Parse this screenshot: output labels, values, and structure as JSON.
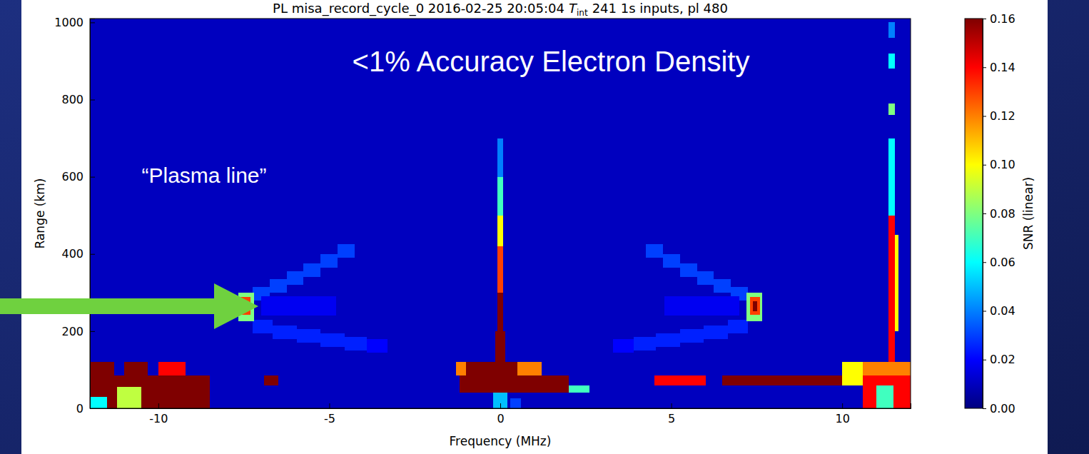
{
  "chart_data": {
    "type": "heatmap",
    "title": [
      "PL misa_record_cycle_0 2016-02-25 20:05:04",
      "T",
      "int",
      "241 1s inputs, pl 480"
    ],
    "x_label": "Frequency (MHz)",
    "y_label": "Range (km)",
    "xlim": [
      -12,
      12
    ],
    "ylim": [
      0,
      1010
    ],
    "xticks": [
      -10,
      -5,
      0,
      5,
      10
    ],
    "yticks": [
      0,
      200,
      400,
      600,
      800,
      1000
    ],
    "cells": [
      {
        "x": [
          -12,
          12
        ],
        "y": [
          0,
          1010
        ],
        "value": 0.01
      },
      {
        "x": [
          -0.08,
          0.08
        ],
        "y": [
          120,
          300
        ],
        "value": 0.16
      },
      {
        "x": [
          -0.08,
          0.08
        ],
        "y": [
          300,
          420
        ],
        "value": 0.13
      },
      {
        "x": [
          -0.08,
          0.08
        ],
        "y": [
          420,
          500
        ],
        "value": 0.1
      },
      {
        "x": [
          -0.08,
          0.08
        ],
        "y": [
          500,
          600
        ],
        "value": 0.07
      },
      {
        "x": [
          -0.08,
          0.08
        ],
        "y": [
          600,
          700
        ],
        "value": 0.04
      },
      {
        "x": [
          -0.15,
          0.15
        ],
        "y": [
          120,
          200
        ],
        "value": 0.16
      },
      {
        "x": [
          -7.25,
          -6.75
        ],
        "y": [
          280,
          315
        ],
        "value": 0.03
      },
      {
        "x": [
          -6.75,
          -6.25
        ],
        "y": [
          300,
          335
        ],
        "value": 0.03
      },
      {
        "x": [
          -6.25,
          -5.75
        ],
        "y": [
          320,
          355
        ],
        "value": 0.03
      },
      {
        "x": [
          -5.75,
          -5.25
        ],
        "y": [
          340,
          375
        ],
        "value": 0.03
      },
      {
        "x": [
          -5.25,
          -4.75
        ],
        "y": [
          365,
          400
        ],
        "value": 0.03
      },
      {
        "x": [
          -4.75,
          -4.25
        ],
        "y": [
          390,
          425
        ],
        "value": 0.03
      },
      {
        "x": [
          -7.25,
          -6.65
        ],
        "y": [
          195,
          230
        ],
        "value": 0.025
      },
      {
        "x": [
          -6.65,
          -5.95
        ],
        "y": [
          180,
          215
        ],
        "value": 0.025
      },
      {
        "x": [
          -5.95,
          -5.25
        ],
        "y": [
          170,
          205
        ],
        "value": 0.025
      },
      {
        "x": [
          -5.25,
          -4.55
        ],
        "y": [
          160,
          195
        ],
        "value": 0.025
      },
      {
        "x": [
          -4.55,
          -3.9
        ],
        "y": [
          150,
          185
        ],
        "value": 0.025
      },
      {
        "x": [
          -3.9,
          -3.3
        ],
        "y": [
          145,
          180
        ],
        "value": 0.02
      },
      {
        "x": [
          -7.0,
          -4.8
        ],
        "y": [
          240,
          290
        ],
        "value": 0.018
      },
      {
        "x": [
          -7.65,
          -7.2
        ],
        "y": [
          225,
          300
        ],
        "value": 0.08
      },
      {
        "x": [
          -7.6,
          -7.3
        ],
        "y": [
          242,
          288
        ],
        "value": 0.13
      },
      {
        "x": [
          -7.52,
          -7.38
        ],
        "y": [
          252,
          278
        ],
        "value": 0.16
      },
      {
        "x": [
          6.75,
          7.25
        ],
        "y": [
          280,
          315
        ],
        "value": 0.03
      },
      {
        "x": [
          6.25,
          6.75
        ],
        "y": [
          300,
          335
        ],
        "value": 0.03
      },
      {
        "x": [
          5.75,
          6.25
        ],
        "y": [
          320,
          355
        ],
        "value": 0.03
      },
      {
        "x": [
          5.25,
          5.75
        ],
        "y": [
          340,
          375
        ],
        "value": 0.03
      },
      {
        "x": [
          4.75,
          5.25
        ],
        "y": [
          365,
          400
        ],
        "value": 0.03
      },
      {
        "x": [
          4.25,
          4.75
        ],
        "y": [
          390,
          425
        ],
        "value": 0.03
      },
      {
        "x": [
          6.65,
          7.25
        ],
        "y": [
          195,
          230
        ],
        "value": 0.025
      },
      {
        "x": [
          5.95,
          6.65
        ],
        "y": [
          180,
          215
        ],
        "value": 0.025
      },
      {
        "x": [
          5.25,
          5.95
        ],
        "y": [
          170,
          205
        ],
        "value": 0.025
      },
      {
        "x": [
          4.55,
          5.25
        ],
        "y": [
          160,
          195
        ],
        "value": 0.025
      },
      {
        "x": [
          3.9,
          4.55
        ],
        "y": [
          150,
          185
        ],
        "value": 0.025
      },
      {
        "x": [
          3.3,
          3.9
        ],
        "y": [
          145,
          180
        ],
        "value": 0.02
      },
      {
        "x": [
          4.8,
          7.0
        ],
        "y": [
          240,
          290
        ],
        "value": 0.018
      },
      {
        "x": [
          7.2,
          7.65
        ],
        "y": [
          225,
          300
        ],
        "value": 0.08
      },
      {
        "x": [
          7.3,
          7.6
        ],
        "y": [
          242,
          288
        ],
        "value": 0.13
      },
      {
        "x": [
          7.38,
          7.52
        ],
        "y": [
          252,
          278
        ],
        "value": 0.16
      },
      {
        "x": [
          -12,
          -11.3
        ],
        "y": [
          85,
          120
        ],
        "value": 0.16
      },
      {
        "x": [
          -11.0,
          -10.3
        ],
        "y": [
          85,
          120
        ],
        "value": 0.16
      },
      {
        "x": [
          -10.0,
          -9.2
        ],
        "y": [
          85,
          120
        ],
        "value": 0.14
      },
      {
        "x": [
          -12,
          -8.5
        ],
        "y": [
          0,
          85
        ],
        "value": 0.16
      },
      {
        "x": [
          -11.2,
          -10.5
        ],
        "y": [
          0,
          55
        ],
        "value": 0.09
      },
      {
        "x": [
          -12,
          -11.5
        ],
        "y": [
          0,
          30
        ],
        "value": 0.06
      },
      {
        "x": [
          -6.9,
          -6.5
        ],
        "y": [
          60,
          85
        ],
        "value": 0.16
      },
      {
        "x": [
          -1.3,
          1.2
        ],
        "y": [
          85,
          120
        ],
        "value": 0.12
      },
      {
        "x": [
          -1.0,
          0.5
        ],
        "y": [
          85,
          120
        ],
        "value": 0.16
      },
      {
        "x": [
          -1.2,
          2.0
        ],
        "y": [
          40,
          85
        ],
        "value": 0.16
      },
      {
        "x": [
          2.0,
          2.6
        ],
        "y": [
          40,
          60
        ],
        "value": 0.07
      },
      {
        "x": [
          -0.2,
          0.2
        ],
        "y": [
          0,
          40
        ],
        "value": 0.05
      },
      {
        "x": [
          0.3,
          0.6
        ],
        "y": [
          0,
          25
        ],
        "value": 0.03
      },
      {
        "x": [
          4.5,
          6.0
        ],
        "y": [
          60,
          85
        ],
        "value": 0.14
      },
      {
        "x": [
          6.5,
          10.4
        ],
        "y": [
          60,
          85
        ],
        "value": 0.16
      },
      {
        "x": [
          10.0,
          10.6
        ],
        "y": [
          60,
          120
        ],
        "value": 0.1
      },
      {
        "x": [
          10.6,
          12
        ],
        "y": [
          85,
          120
        ],
        "value": 0.12
      },
      {
        "x": [
          10.6,
          12
        ],
        "y": [
          0,
          85
        ],
        "value": 0.14
      },
      {
        "x": [
          11.0,
          11.5
        ],
        "y": [
          0,
          60
        ],
        "value": 0.07
      },
      {
        "x": [
          11.35,
          11.55
        ],
        "y": [
          120,
          500
        ],
        "value": 0.14
      },
      {
        "x": [
          11.35,
          11.55
        ],
        "y": [
          500,
          700
        ],
        "value": 0.06
      },
      {
        "x": [
          11.35,
          11.55
        ],
        "y": [
          760,
          790
        ],
        "value": 0.08
      },
      {
        "x": [
          11.35,
          11.55
        ],
        "y": [
          880,
          920
        ],
        "value": 0.06
      },
      {
        "x": [
          11.35,
          11.55
        ],
        "y": [
          960,
          1000
        ],
        "value": 0.04
      },
      {
        "x": [
          11.55,
          11.65
        ],
        "y": [
          200,
          450
        ],
        "value": 0.1
      }
    ],
    "colorbar": {
      "label": "SNR (linear)",
      "range": [
        0,
        0.16
      ],
      "ticks": [
        {
          "value": 0,
          "label": "0.00"
        },
        {
          "value": 0.02,
          "label": "0.02"
        },
        {
          "value": 0.04,
          "label": "0.04"
        },
        {
          "value": 0.06,
          "label": "0.06"
        },
        {
          "value": 0.08,
          "label": "0.08"
        },
        {
          "value": 0.1,
          "label": "0.10"
        },
        {
          "value": 0.12,
          "label": "0.12"
        },
        {
          "value": 0.14,
          "label": "0.14"
        },
        {
          "value": 0.16,
          "label": "0.16"
        }
      ]
    },
    "annotations": [
      "<1% Accuracy Electron Density",
      "“Plasma line”"
    ]
  }
}
